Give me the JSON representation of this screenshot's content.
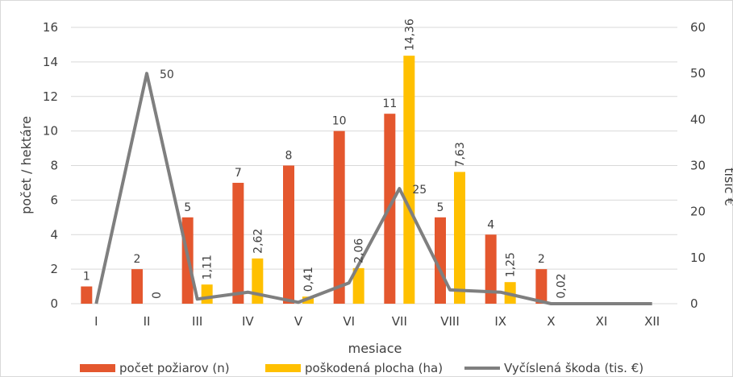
{
  "chart_data": {
    "type": "bar",
    "title": "",
    "xlabel": "mesiace",
    "ylabel": "počet / hektáre",
    "y2label": "tisíc €",
    "categories": [
      "I",
      "II",
      "III",
      "IV",
      "V",
      "VI",
      "VII",
      "VIII",
      "IX",
      "X",
      "XI",
      "XII"
    ],
    "ylim": [
      0,
      16
    ],
    "yticks": [
      "0",
      "2",
      "4",
      "6",
      "8",
      "10",
      "12",
      "14",
      "16"
    ],
    "y2lim": [
      0,
      60
    ],
    "y2ticks": [
      "0",
      "10",
      "20",
      "30",
      "40",
      "50",
      "60"
    ],
    "grid": true,
    "legend_position": "bottom",
    "series": [
      {
        "name": "počet požiarov (n)",
        "kind": "bar",
        "axis": "left",
        "color": "#e4572e",
        "values": [
          1,
          2,
          5,
          7,
          8,
          10,
          11,
          5,
          4,
          2,
          0,
          0
        ],
        "labels": [
          "1",
          "2",
          "5",
          "7",
          "8",
          "10",
          "11",
          "5",
          "4",
          "2",
          "0",
          "0"
        ]
      },
      {
        "name": "poškodená plocha (ha)",
        "kind": "bar",
        "axis": "left",
        "color": "#ffc000",
        "values": [
          0,
          0,
          1.11,
          2.62,
          0.41,
          2.06,
          14.36,
          7.63,
          1.25,
          0.02,
          0,
          0
        ],
        "labels": [
          "",
          "0",
          "1,11",
          "2,62",
          "0,41",
          "2,06",
          "14,36",
          "7,63",
          "1,25",
          "0,02",
          "",
          ""
        ]
      },
      {
        "name": "Vyčíslená škoda (tis. €)",
        "kind": "line",
        "axis": "right",
        "color": "#7f7f7f",
        "values": [
          0,
          50,
          1,
          2.5,
          0.3,
          4.5,
          25,
          3,
          2.5,
          0,
          0,
          0
        ],
        "labels": [
          "",
          "50",
          "",
          "",
          "",
          "",
          "25",
          "",
          "",
          "",
          "",
          ""
        ]
      }
    ]
  }
}
